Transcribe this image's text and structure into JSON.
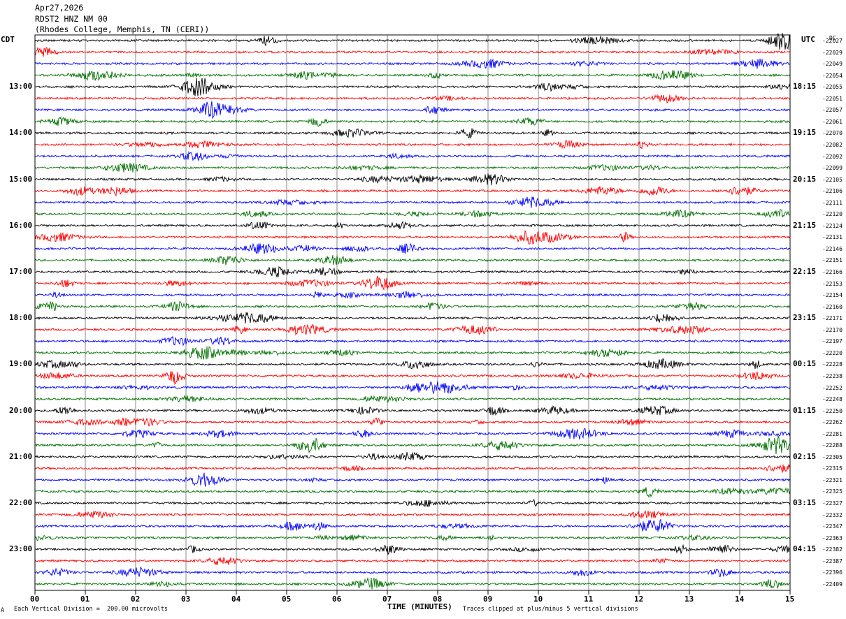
{
  "header": {
    "date": "Apr27,2026",
    "station": "RDST2 HNZ NM 00",
    "location": "(Rhodes College, Memphis, TN (CERI))"
  },
  "left_axis": {
    "title": "CDT"
  },
  "right_axis": {
    "title": "UTC",
    "dc_title": "DC"
  },
  "footer": {
    "corner": "A",
    "division": "Each Vertical Division =  200.00 microvolts",
    "clip": "Traces clipped at plus/minus 5 vertical divisions"
  },
  "chart_data": {
    "type": "line",
    "xlabel": "TIME (MINUTES)",
    "xlim": [
      0,
      15
    ],
    "x_ticks": [
      "00",
      "01",
      "02",
      "03",
      "04",
      "05",
      "06",
      "07",
      "08",
      "09",
      "10",
      "11",
      "12",
      "13",
      "14",
      "15"
    ],
    "trace_colors": [
      "#000000",
      "#ff0000",
      "#0000ff",
      "#007000"
    ],
    "row_count": 48,
    "cdt_labels": [
      {
        "row": 4,
        "text": "13:00"
      },
      {
        "row": 8,
        "text": "14:00"
      },
      {
        "row": 12,
        "text": "15:00"
      },
      {
        "row": 16,
        "text": "16:00"
      },
      {
        "row": 20,
        "text": "17:00"
      },
      {
        "row": 24,
        "text": "18:00"
      },
      {
        "row": 28,
        "text": "19:00"
      },
      {
        "row": 32,
        "text": "20:00"
      },
      {
        "row": 36,
        "text": "21:00"
      },
      {
        "row": 40,
        "text": "22:00"
      },
      {
        "row": 44,
        "text": "23:00"
      }
    ],
    "utc_labels": [
      {
        "row": 4,
        "text": "18:15"
      },
      {
        "row": 8,
        "text": "19:15"
      },
      {
        "row": 12,
        "text": "20:15"
      },
      {
        "row": 16,
        "text": "21:15"
      },
      {
        "row": 20,
        "text": "22:15"
      },
      {
        "row": 24,
        "text": "23:15"
      },
      {
        "row": 28,
        "text": "00:15"
      },
      {
        "row": 32,
        "text": "01:15"
      },
      {
        "row": 36,
        "text": "02:15"
      },
      {
        "row": 40,
        "text": "03:15"
      },
      {
        "row": 44,
        "text": "04:15"
      }
    ],
    "dc_offsets": [
      "-22027",
      "-22029",
      "-22049",
      "-22054",
      "-22055",
      "-22051",
      "-22057",
      "-22061",
      "-22070",
      "-22082",
      "-22092",
      "-22099",
      "-22105",
      "-22106",
      "-22111",
      "-22120",
      "-22124",
      "-22131",
      "-22146",
      "-22151",
      "-22166",
      "-22153",
      "-22154",
      "-22160",
      "-22171",
      "-22170",
      "-22197",
      "-22220",
      "-22228",
      "-22238",
      "-22252",
      "-22248",
      "-22250",
      "-22262",
      "-22281",
      "-22288",
      "-22305",
      "-22315",
      "-22321",
      "-22325",
      "-22327",
      "-22332",
      "-22347",
      "-22363",
      "-22382",
      "-22387",
      "-22396",
      "-22409"
    ]
  }
}
